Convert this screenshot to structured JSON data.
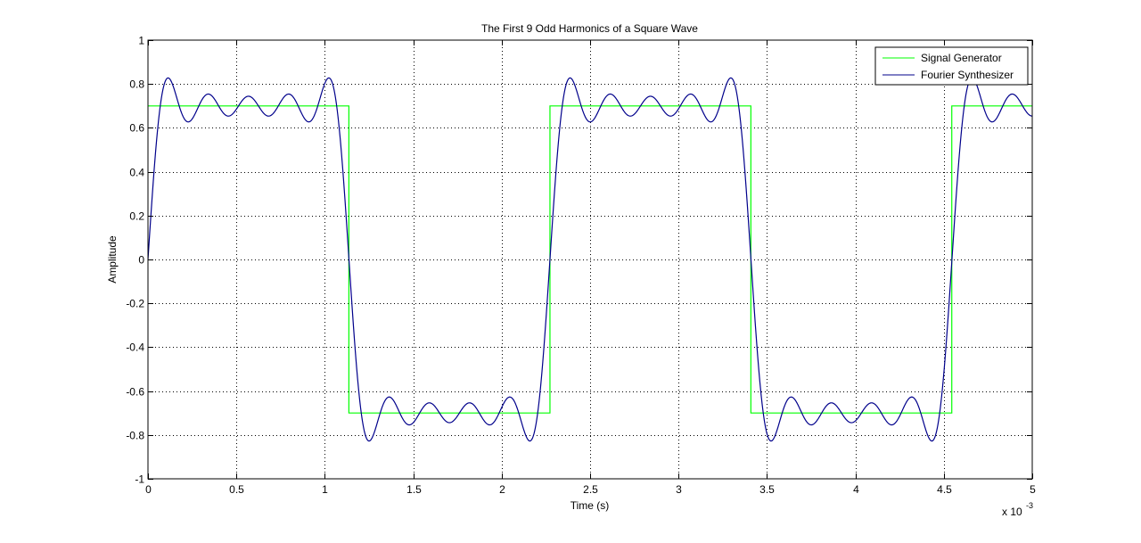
{
  "chart_data": {
    "type": "line",
    "title": "The First 9 Odd Harmonics of a Square Wave",
    "xlabel": "Time (s)",
    "ylabel": "Amplitude",
    "x_exponent_base": "x 10",
    "x_exponent_power": "-3",
    "xlim": [
      0,
      0.005
    ],
    "ylim": [
      -1,
      1
    ],
    "grid": true,
    "legend_position": "top-right",
    "x_ticks": [
      0,
      0.5,
      1,
      1.5,
      2,
      2.5,
      3,
      3.5,
      4,
      4.5,
      5
    ],
    "x_tick_labels": [
      "0",
      "0.5",
      "1",
      "1.5",
      "2",
      "2.5",
      "3",
      "3.5",
      "4",
      "4.5",
      "5"
    ],
    "y_ticks": [
      1,
      0.8,
      0.6,
      0.4,
      0.2,
      0,
      -0.2,
      -0.4,
      -0.6,
      -0.8,
      -1
    ],
    "y_tick_labels": [
      "1",
      "0.8",
      "0.6",
      "0.4",
      "0.2",
      "0",
      "-0.2",
      "-0.4",
      "-0.6",
      "-0.8",
      "-1"
    ],
    "series": [
      {
        "name": "Signal Generator",
        "color": "#00ff00",
        "kind": "square",
        "amplitude": 0.7,
        "period_s": 0.002273,
        "x": [
          0,
          0.001136,
          0.001136,
          0.002273,
          0.002273,
          0.003409,
          0.003409,
          0.004545,
          0.004545,
          0.005
        ],
        "y": [
          0.7,
          0.7,
          -0.7,
          -0.7,
          0.7,
          0.7,
          -0.7,
          -0.7,
          0.7,
          0.7
        ]
      },
      {
        "name": "Fourier Synthesizer",
        "color": "#00008b",
        "kind": "fourier",
        "amplitude": 0.7,
        "period_s": 0.002273,
        "harmonics": [
          1,
          3,
          5,
          7,
          9
        ],
        "peak_value": 0.83,
        "trough_value": -0.83
      }
    ]
  }
}
